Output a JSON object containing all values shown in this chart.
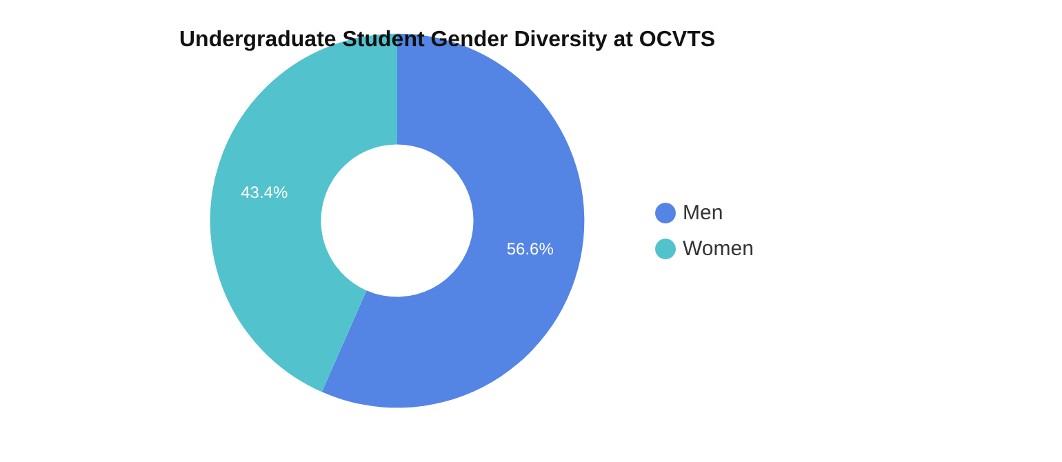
{
  "chart_data": {
    "type": "donut",
    "title": "Undergraduate Student Gender Diversity at OCVTS",
    "categories": [
      "Men",
      "Women"
    ],
    "values": [
      56.6,
      43.4
    ],
    "colors": [
      "#5484e4",
      "#52c2cd"
    ],
    "value_labels": [
      "56.6%",
      "43.4%"
    ],
    "legend": "right"
  }
}
